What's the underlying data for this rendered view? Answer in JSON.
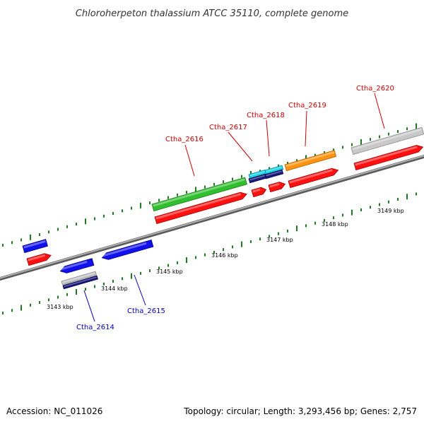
{
  "title": "Chloroherpeton thalassium ATCC 35110, complete genome",
  "footer": {
    "accession": "Accession: NC_011026",
    "summary": "Topology: circular; Length: 3,293,456 bp; Genes: 2,757"
  },
  "colors": {
    "label_red": "#cc0000",
    "label_blue": "#0000bb",
    "tick_green": "#1f7a1f",
    "backbone": "#888888"
  },
  "kbp_labels": [
    "3143 kbp",
    "3144 kbp",
    "3145 kbp",
    "3146 kbp",
    "3147 kbp",
    "3148 kbp",
    "3149 kbp"
  ],
  "gene_labels": [
    {
      "name": "Ctha_2614",
      "strand": "reverse"
    },
    {
      "name": "Ctha_2615",
      "strand": "reverse"
    },
    {
      "name": "Ctha_2616",
      "strand": "forward"
    },
    {
      "name": "Ctha_2617",
      "strand": "forward"
    },
    {
      "name": "Ctha_2618",
      "strand": "forward"
    },
    {
      "name": "Ctha_2619",
      "strand": "forward"
    },
    {
      "name": "Ctha_2620",
      "strand": "forward"
    }
  ]
}
